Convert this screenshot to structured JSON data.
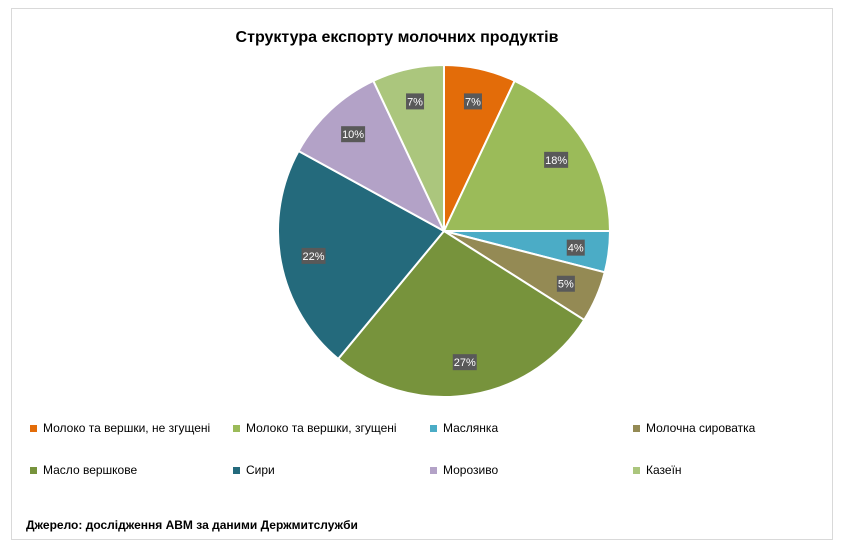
{
  "chart_data": {
    "type": "pie",
    "title": "Структура експорту молочних продуктів",
    "slices": [
      {
        "label": "Молоко та вершки, не згущені",
        "value": 7,
        "display": "7%",
        "color": "#E36C09"
      },
      {
        "label": "Молоко та вершки, згущені",
        "value": 18,
        "display": "18%",
        "color": "#9BBB59"
      },
      {
        "label": "Маслянка",
        "value": 4,
        "display": "4%",
        "color": "#4BACC6"
      },
      {
        "label": "Молочна сироватка",
        "value": 5,
        "display": "5%",
        "color": "#948A54"
      },
      {
        "label": "Масло вершкове",
        "value": 27,
        "display": "27%",
        "color": "#77933C"
      },
      {
        "label": "Сири",
        "value": 22,
        "display": "22%",
        "color": "#246A7C"
      },
      {
        "label": "Морозиво",
        "value": 10,
        "display": "10%",
        "color": "#B3A2C7"
      },
      {
        "label": "Казеїн",
        "value": 7,
        "display": "7%",
        "color": "#ABC67D"
      }
    ],
    "legend_position": "bottom"
  },
  "source": "Джерело: дослідження АВМ за даними Держмитслужби"
}
